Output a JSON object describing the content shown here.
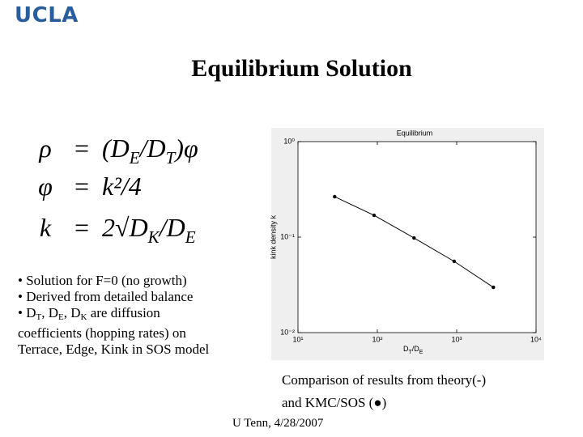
{
  "logo": "UCLA",
  "title": "Equilibrium Solution",
  "equations": [
    {
      "lhs": "ρ",
      "op": "=",
      "rhs": [
        "(D",
        "E",
        "/D",
        "T",
        ")φ"
      ]
    },
    {
      "lhs": "φ",
      "op": "=",
      "rhs": [
        "k²/4"
      ]
    },
    {
      "lhs": "k",
      "op": "=",
      "rhs": [
        "2√D",
        "K",
        "/D",
        "E"
      ]
    }
  ],
  "bullets": [
    [
      "• Solution for F=0 (no growth)"
    ],
    [
      "• Derived from detailed balance"
    ],
    [
      "• D",
      "T",
      ", D",
      "E",
      ", D",
      "K",
      " are diffusion"
    ],
    [
      "coefficients (hopping rates) on"
    ],
    [
      "Terrace, Edge, Kink in SOS model"
    ]
  ],
  "caption": [
    "Comparison of results from theory(-)",
    "and KMC/SOS (●)"
  ],
  "footer": "U Tenn, 4/28/2007",
  "chart_data": {
    "type": "line",
    "title": "Equilibrium",
    "x_label": [
      "D",
      "T",
      "/D",
      "E"
    ],
    "y_label": "kink density k",
    "x": [
      29,
      91,
      290,
      930,
      2900
    ],
    "values": [
      0.265,
      0.169,
      0.098,
      0.0557,
      0.0298
    ],
    "color": "#000000",
    "log_x": true,
    "log_y": true,
    "xlim": [
      10,
      10000
    ],
    "ylim": [
      0.01,
      1
    ],
    "xticks": [
      {
        "value": 10,
        "label": "10¹"
      },
      {
        "value": 100,
        "label": "10²"
      },
      {
        "value": 1000,
        "label": "10³"
      },
      {
        "value": 10000,
        "label": "10⁴"
      }
    ],
    "yticks": [
      {
        "value": 0.01,
        "label": "10⁻²"
      },
      {
        "value": 0.1,
        "label": "10⁻¹"
      },
      {
        "value": 1,
        "label": "10⁰"
      }
    ]
  }
}
